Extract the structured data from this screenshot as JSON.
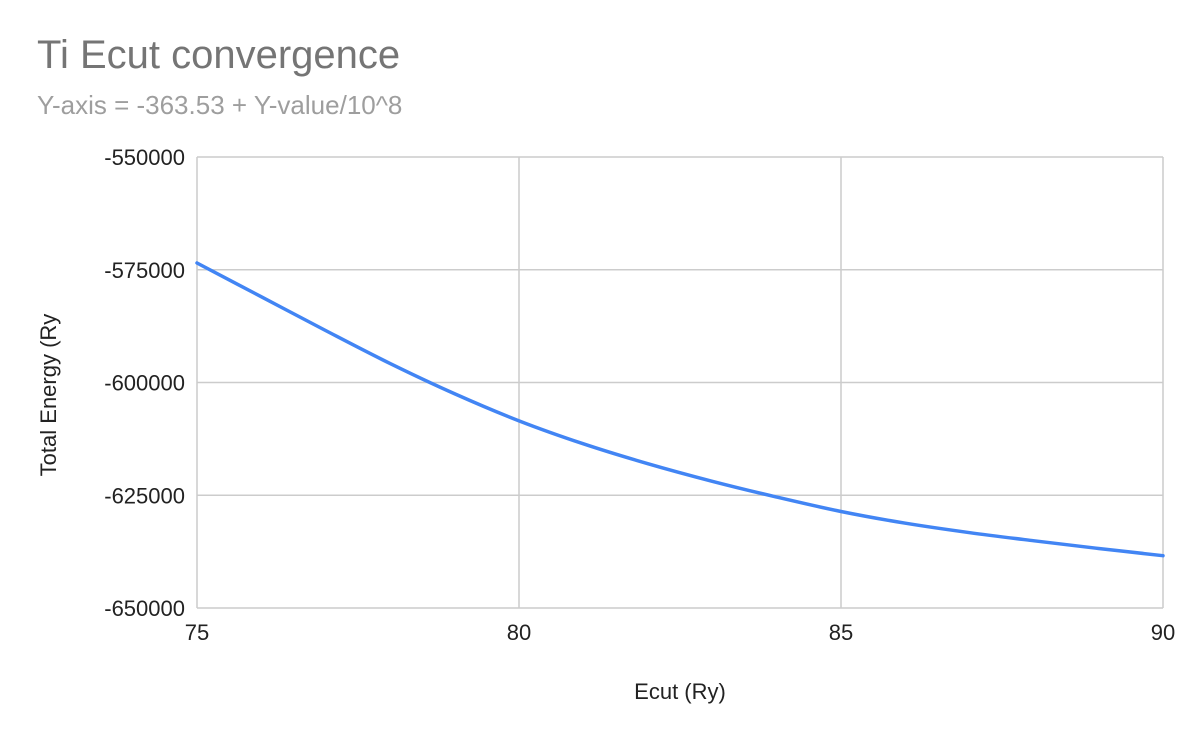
{
  "chart_data": {
    "type": "line",
    "title": "Ti Ecut convergence",
    "subtitle": "Y-axis = -363.53 + Y-value/10^8",
    "xlabel": "Ecut (Ry)",
    "ylabel": "Total Energy (Ry",
    "x": [
      75,
      76,
      77,
      78,
      79,
      80,
      81,
      82,
      83,
      84,
      85,
      86,
      87,
      88,
      89,
      90
    ],
    "series": [
      {
        "values": [
          -573500,
          -581000,
          -588500,
          -595800,
          -602500,
          -608500,
          -613600,
          -618000,
          -621900,
          -625400,
          -628600,
          -631200,
          -633300,
          -635100,
          -636800,
          -638400
        ]
      }
    ],
    "xlim": [
      75,
      90
    ],
    "ylim": [
      -650000,
      -550000
    ],
    "xticks": [
      "75",
      "80",
      "85",
      "90"
    ],
    "yticks": [
      "-550000",
      "-575000",
      "-600000",
      "-625000",
      "-650000"
    ],
    "grid": true,
    "series_color": "#4285f4"
  }
}
